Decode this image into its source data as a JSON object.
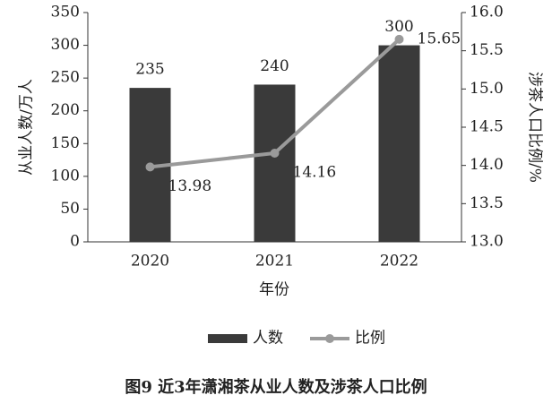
{
  "chart_data": {
    "type": "combo",
    "title": "图9 近3年潇湘茶从业人数及涉茶人口比例",
    "x_label": "年份",
    "y_label": "从业人数/万人",
    "y2_label": "涉茶人口比例/%",
    "categories": [
      "2020",
      "2021",
      "2022"
    ],
    "series": [
      {
        "name": "人数",
        "type": "bar",
        "color": "#3a3a3a",
        "values": [
          235,
          240,
          300
        ]
      },
      {
        "name": "比例",
        "type": "line",
        "axis": "y2",
        "color": "#9a9a9a",
        "values": [
          13.98,
          14.16,
          15.65
        ]
      }
    ],
    "ylim": [
      0,
      350
    ],
    "yticks": [
      0,
      50,
      100,
      150,
      200,
      250,
      300,
      350
    ],
    "y2lim": [
      13.0,
      16.0
    ],
    "y2ticks": [
      {
        "value": 13,
        "label": "13.0"
      },
      {
        "value": 13.5,
        "label": "13.5"
      },
      {
        "value": 14,
        "label": "14.0"
      },
      {
        "value": 14.5,
        "label": "14.5"
      },
      {
        "value": 15,
        "label": "15.0"
      },
      {
        "value": 15.5,
        "label": "15.5"
      },
      {
        "value": 16,
        "label": "16.0"
      }
    ],
    "legend": "bottom"
  }
}
